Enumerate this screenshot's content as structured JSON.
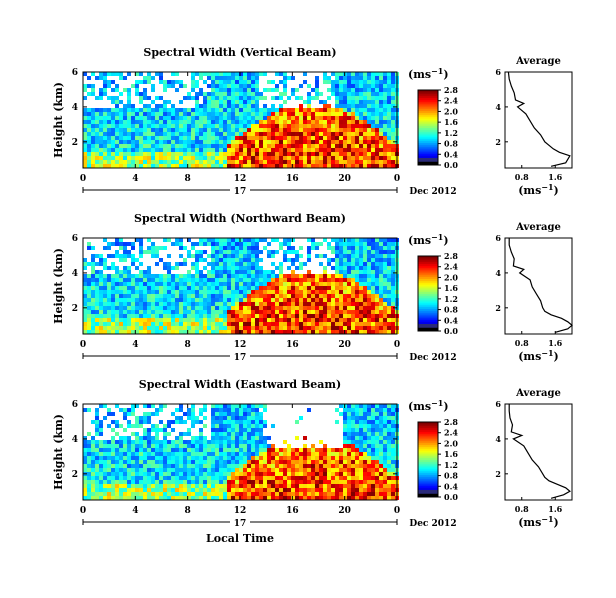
{
  "chart_data": [
    {
      "type": "heatmap",
      "title": "Spectral Width (Vertical Beam)",
      "ylabel": "Height (km)",
      "x_ticks": [
        "0",
        "4",
        "8",
        "12",
        "16",
        "20",
        "0"
      ],
      "y_ticks": [
        "2",
        "4",
        "6"
      ],
      "xlim": [
        0,
        24
      ],
      "ylim": [
        0.5,
        6
      ],
      "date_marker": "17",
      "date_label": "Dec 2012",
      "colorbar": {
        "unit_label": "(ms",
        "unit_exp": "−1",
        "unit_close": ")",
        "ticks": [
          "0.0",
          "0.4",
          "0.8",
          "1.2",
          "1.6",
          "2.0",
          "2.4",
          "2.8"
        ]
      },
      "profile": {
        "title": "Average",
        "x_ticks": [
          "0.8",
          "1.6"
        ],
        "y_ticks": [
          "2",
          "4",
          "6"
        ],
        "xlabel": "(ms",
        "xexp": "−1",
        "xclose": ")",
        "xlim": [
          0.4,
          2.0
        ],
        "heights": [
          0.6,
          0.8,
          1.0,
          1.2,
          1.4,
          1.6,
          1.8,
          2.0,
          2.4,
          2.8,
          3.2,
          3.6,
          4.0,
          4.2,
          4.4,
          4.8,
          5.2,
          5.6,
          6.0
        ],
        "values": [
          1.5,
          1.85,
          1.9,
          1.95,
          1.7,
          1.55,
          1.45,
          1.35,
          1.25,
          1.1,
          1.0,
          0.9,
          0.7,
          0.85,
          0.65,
          0.62,
          0.55,
          0.5,
          0.48
        ]
      }
    },
    {
      "type": "heatmap",
      "title": "Spectral Width (Northward Beam)",
      "ylabel": "Height (km)",
      "x_ticks": [
        "0",
        "4",
        "8",
        "12",
        "16",
        "20",
        "0"
      ],
      "y_ticks": [
        "2",
        "4",
        "6"
      ],
      "xlim": [
        0,
        24
      ],
      "ylim": [
        0.5,
        6
      ],
      "date_marker": "17",
      "date_label": "Dec 2012",
      "colorbar": {
        "unit_label": "(ms",
        "unit_exp": "−1",
        "unit_close": ")",
        "ticks": [
          "0.0",
          "0.4",
          "0.8",
          "1.2",
          "1.6",
          "2.0",
          "2.4",
          "2.8"
        ]
      },
      "profile": {
        "title": "Average",
        "x_ticks": [
          "0.8",
          "1.6"
        ],
        "y_ticks": [
          "2",
          "4",
          "6"
        ],
        "xlabel": "(ms",
        "xexp": "−1",
        "xclose": ")",
        "xlim": [
          0.4,
          2.0
        ],
        "heights": [
          0.6,
          0.8,
          1.0,
          1.2,
          1.4,
          1.6,
          1.8,
          2.0,
          2.4,
          2.8,
          3.2,
          3.6,
          4.0,
          4.2,
          4.4,
          4.8,
          5.2,
          5.6,
          6.0
        ],
        "values": [
          1.6,
          1.9,
          2.0,
          1.9,
          1.75,
          1.5,
          1.35,
          1.3,
          1.25,
          1.15,
          1.05,
          1.0,
          0.75,
          0.85,
          0.6,
          0.62,
          0.55,
          0.5,
          0.5
        ]
      }
    },
    {
      "type": "heatmap",
      "title": "Spectral Width (Eastward Beam)",
      "ylabel": "Height (km)",
      "xlabel": "Local Time",
      "x_ticks": [
        "0",
        "4",
        "8",
        "12",
        "16",
        "20",
        "0"
      ],
      "y_ticks": [
        "2",
        "4",
        "6"
      ],
      "xlim": [
        0,
        24
      ],
      "ylim": [
        0.5,
        6
      ],
      "date_marker": "17",
      "date_label": "Dec 2012",
      "colorbar": {
        "unit_label": "(ms",
        "unit_exp": "−1",
        "unit_close": ")",
        "ticks": [
          "0.0",
          "0.4",
          "0.8",
          "1.2",
          "1.6",
          "2.0",
          "2.4",
          "2.8"
        ]
      },
      "profile": {
        "title": "Average",
        "x_ticks": [
          "0.8",
          "1.6"
        ],
        "y_ticks": [
          "2",
          "4",
          "6"
        ],
        "xlabel": "(ms",
        "xexp": "−1",
        "xclose": ")",
        "xlim": [
          0.4,
          2.0
        ],
        "heights": [
          0.6,
          0.8,
          1.0,
          1.2,
          1.4,
          1.6,
          1.8,
          2.0,
          2.4,
          2.8,
          3.2,
          3.6,
          4.0,
          4.2,
          4.4,
          4.8,
          5.2,
          5.6,
          6.0
        ],
        "values": [
          1.5,
          1.8,
          1.95,
          1.85,
          1.65,
          1.45,
          1.35,
          1.3,
          1.2,
          1.05,
          0.95,
          0.85,
          0.6,
          0.8,
          0.55,
          0.58,
          0.52,
          0.5,
          0.5
        ]
      }
    }
  ]
}
